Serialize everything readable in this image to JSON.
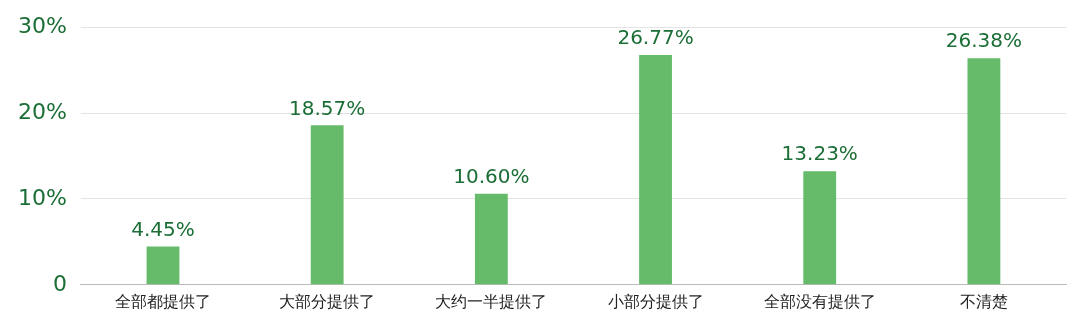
{
  "chart_data": {
    "type": "bar",
    "categories": [
      "全部都提供了",
      "大部分提供了",
      "大约一半提供了",
      "小部分提供了",
      "全部没有提供了",
      "不清楚"
    ],
    "values": [
      4.45,
      18.57,
      10.6,
      26.77,
      13.23,
      26.38
    ],
    "value_labels": [
      "4.45%",
      "18.57%",
      "10.60%",
      "26.77%",
      "13.23%",
      "26.38%"
    ],
    "color": "#66bb6a",
    "ylim": [
      0,
      30
    ],
    "yticks": [
      0,
      {
        "value": 10,
        "label": "10%"
      },
      {
        "value": 20,
        "label": "20%"
      },
      {
        "value": 30,
        "label": "30%"
      }
    ],
    "grid": "y"
  }
}
